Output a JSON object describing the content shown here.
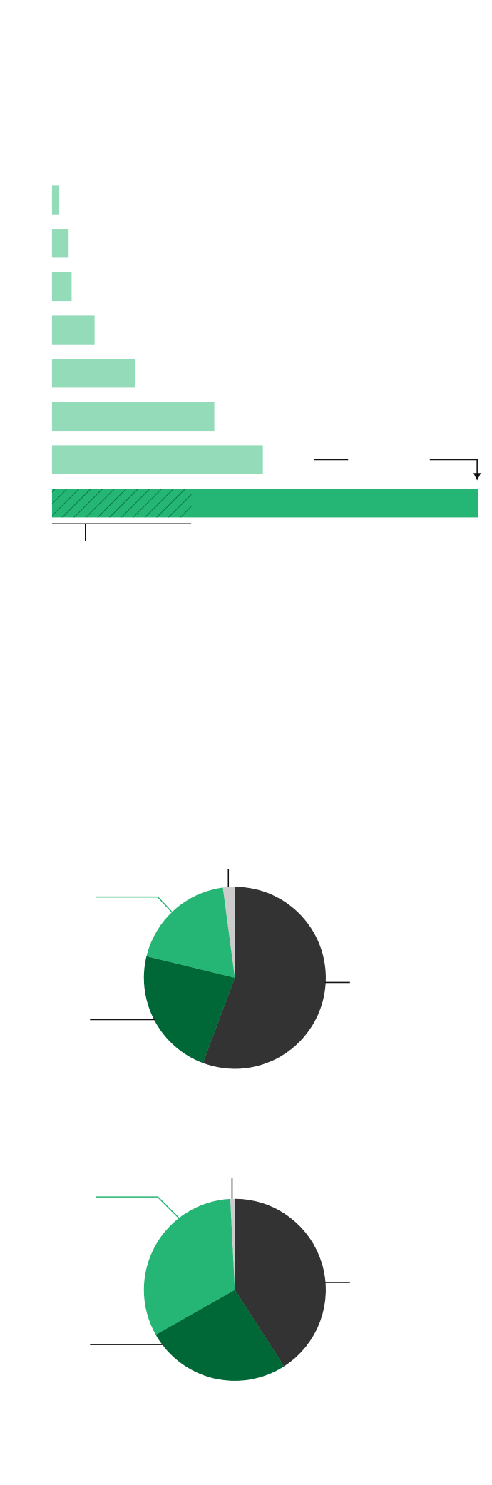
{
  "chart_data": [
    {
      "type": "bar",
      "orientation": "horizontal",
      "values": [
        1.7,
        3.9,
        4.6,
        10,
        19.6,
        38.1,
        49.5,
        100
      ],
      "color": "#93dbb9",
      "last_color": "#25b574",
      "hatch_color": "#006837",
      "hatched_value": 32.7,
      "xlim": [
        0,
        100
      ]
    },
    {
      "type": "pie",
      "values": [
        55.7,
        23.1,
        19.1,
        2.1
      ],
      "colors": [
        "#333333",
        "#006837",
        "#25b574",
        "#cccccc"
      ]
    },
    {
      "type": "pie",
      "values": [
        40.9,
        25.9,
        32.4,
        0.8
      ],
      "colors": [
        "#333333",
        "#006837",
        "#25b574",
        "#cccccc"
      ]
    }
  ]
}
